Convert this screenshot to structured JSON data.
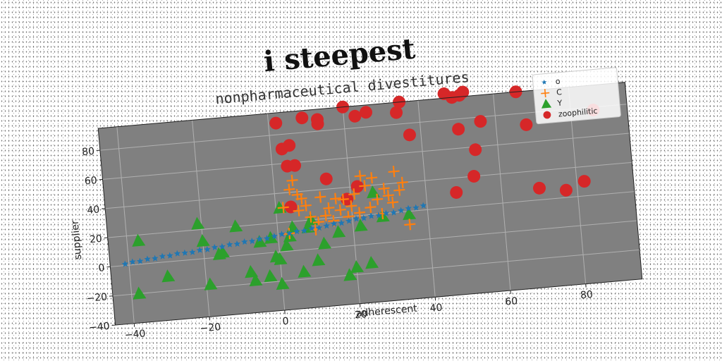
{
  "chart_data": {
    "type": "scatter",
    "title": "i steepest",
    "subtitle": "nonpharmaceutical divestitures",
    "xlabel": "adherescent",
    "ylabel": "supplier",
    "xlim": [
      -45,
      95
    ],
    "ylim": [
      -40,
      95
    ],
    "xticks": [
      "−40",
      "−20",
      "0",
      "20",
      "40",
      "60",
      "80"
    ],
    "xtick_values": [
      -40,
      -20,
      0,
      20,
      40,
      60,
      80
    ],
    "yticks": [
      "−40",
      "−20",
      "0",
      "20",
      "40",
      "60",
      "80"
    ],
    "ytick_values": [
      -40,
      -20,
      0,
      20,
      40,
      60,
      80
    ],
    "grid": true,
    "legend_position": "top-right",
    "series": [
      {
        "name": "o",
        "marker": "star",
        "color": "#1f77b4",
        "x": [
          -41,
          -39,
          -37,
          -35,
          -33,
          -31,
          -29,
          -27,
          -25,
          -23,
          -21,
          -19,
          -17,
          -15,
          -13,
          -11,
          -9,
          -7,
          -5,
          -3,
          -1,
          1,
          3,
          5,
          7,
          9,
          11,
          13,
          15,
          17,
          19,
          21,
          23,
          25,
          27,
          29,
          31,
          33,
          35,
          37,
          39
        ],
        "y": [
          1,
          2,
          2,
          3,
          3,
          4,
          4,
          5,
          5,
          5,
          6,
          6,
          7,
          7,
          8,
          8,
          9,
          9,
          10,
          10,
          11,
          12,
          12,
          13,
          13,
          14,
          14,
          15,
          16,
          16,
          17,
          18,
          18,
          19,
          19,
          20,
          20,
          21,
          22,
          22,
          23
        ]
      },
      {
        "name": "C",
        "marker": "plus",
        "color": "#ff7f0e",
        "x": [
          4,
          5,
          6,
          6,
          7,
          8,
          9,
          10,
          12,
          14,
          15,
          16,
          17,
          18,
          19,
          20,
          21,
          22,
          23,
          24,
          25,
          26,
          27,
          28,
          29,
          30,
          31,
          32,
          33,
          34,
          35,
          2,
          3,
          11,
          13
        ],
        "y": [
          42,
          48,
          38,
          27,
          35,
          30,
          22,
          13,
          35,
          27,
          18,
          33,
          25,
          32,
          20,
          27,
          35,
          22,
          47,
          40,
          25,
          45,
          30,
          20,
          37,
          32,
          27,
          48,
          35,
          40,
          11,
          30,
          12,
          18,
          22
        ]
      },
      {
        "name": "Y",
        "marker": "triangle",
        "color": "#2ca02c",
        "x": [
          -38,
          -37,
          -30,
          -21,
          -20,
          -19,
          -16,
          -15,
          -11,
          -8,
          -7,
          -5,
          -3,
          -2,
          -1,
          0,
          0,
          1,
          2,
          3,
          4,
          6,
          8,
          9,
          10,
          12,
          16,
          18,
          20,
          22,
          24,
          26,
          28,
          35
        ],
        "y": [
          -20,
          16,
          -10,
          24,
          12,
          -18,
          2,
          3,
          20,
          -12,
          -18,
          8,
          -16,
          10,
          -3,
          -5,
          -22,
          30,
          4,
          10,
          16,
          -15,
          15,
          20,
          -8,
          3,
          10,
          -20,
          -15,
          13,
          -13,
          35,
          18,
          18
        ]
      },
      {
        "name": "zoophilitic",
        "marker": "circle",
        "color": "#d62728",
        "x": [
          2,
          3,
          4,
          4,
          5,
          6,
          9,
          13,
          13,
          14,
          19,
          20,
          22,
          23,
          26,
          34,
          35,
          37,
          47,
          48,
          49,
          50,
          51,
          52,
          53,
          54,
          56,
          66,
          68,
          70,
          77,
          82,
          86
        ],
        "y": [
          88,
          70,
          58,
          30,
          72,
          58,
          90,
          88,
          85,
          47,
          32,
          95,
          40,
          88,
          90,
          88,
          95,
          72,
          98,
          30,
          95,
          73,
          96,
          98,
          40,
          58,
          77,
          95,
          72,
          28,
          25,
          30,
          78
        ]
      }
    ]
  }
}
